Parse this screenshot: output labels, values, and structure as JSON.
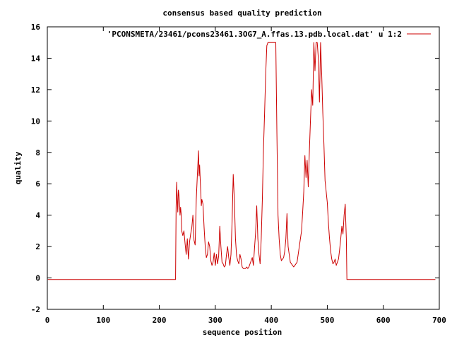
{
  "chart_data": {
    "type": "line",
    "title": "consensus based quality prediction",
    "xlabel": "sequence position",
    "ylabel": "quality",
    "xlim": [
      0,
      700
    ],
    "ylim": [
      -2,
      16
    ],
    "xticks": [
      0,
      100,
      200,
      300,
      400,
      500,
      600,
      700
    ],
    "yticks": [
      -2,
      0,
      2,
      4,
      6,
      8,
      10,
      12,
      14,
      16
    ],
    "grid": false,
    "legend_position": "top-right",
    "series": [
      {
        "name": "'PCONSMETA/23461/pcons23461.3OG7_A.ffas.13.pdb.local.dat' u 1:2",
        "color": "#cc0000",
        "x": [
          1,
          229,
          230,
          231,
          232,
          233,
          234,
          235,
          236,
          237,
          238,
          239,
          240,
          242,
          244,
          246,
          248,
          250,
          252,
          254,
          256,
          258,
          260,
          262,
          264,
          266,
          268,
          270,
          271,
          272,
          273,
          274,
          275,
          276,
          278,
          280,
          282,
          284,
          286,
          288,
          290,
          292,
          294,
          296,
          298,
          300,
          302,
          304,
          306,
          308,
          310,
          312,
          314,
          316,
          318,
          320,
          322,
          324,
          326,
          328,
          330,
          332,
          334,
          336,
          338,
          340,
          342,
          344,
          346,
          348,
          350,
          352,
          354,
          356,
          358,
          360,
          362,
          364,
          366,
          368,
          370,
          372,
          374,
          376,
          378,
          380,
          382,
          384,
          386,
          388,
          390,
          392,
          394,
          396,
          398,
          400,
          402,
          404,
          406,
          408,
          410,
          412,
          414,
          416,
          418,
          420,
          422,
          424,
          426,
          428,
          430,
          432,
          434,
          436,
          438,
          440,
          442,
          444,
          446,
          448,
          450,
          452,
          454,
          456,
          458,
          460,
          462,
          464,
          466,
          468,
          470,
          472,
          474,
          476,
          478,
          480,
          482,
          484,
          486,
          488,
          490,
          492,
          494,
          496,
          498,
          500,
          502,
          504,
          506,
          508,
          510,
          512,
          514,
          516,
          518,
          520,
          522,
          524,
          526,
          528,
          530,
          532,
          534,
          535,
          536,
          600,
          693
        ],
        "y": [
          -0.1,
          -0.1,
          4.5,
          6.1,
          5.0,
          4.2,
          5.6,
          5.3,
          4.8,
          4.0,
          4.5,
          4.1,
          3.0,
          2.7,
          3.0,
          2.2,
          1.5,
          2.5,
          1.2,
          2.3,
          2.8,
          3.2,
          4.0,
          2.4,
          2.1,
          5.0,
          6.6,
          8.1,
          6.5,
          7.2,
          6.3,
          5.5,
          4.6,
          5.0,
          4.7,
          3.2,
          2.0,
          1.3,
          1.5,
          2.3,
          2.0,
          1.1,
          0.8,
          1.0,
          1.6,
          0.8,
          1.5,
          0.9,
          1.4,
          3.3,
          2.0,
          1.0,
          0.9,
          0.7,
          0.8,
          1.5,
          2.0,
          1.3,
          0.8,
          1.5,
          3.6,
          6.6,
          5.0,
          2.5,
          1.4,
          1.1,
          0.9,
          1.5,
          1.2,
          0.7,
          0.6,
          0.6,
          0.6,
          0.7,
          0.6,
          0.7,
          0.9,
          1.1,
          1.3,
          0.8,
          1.9,
          2.9,
          4.6,
          2.5,
          1.5,
          0.9,
          2.5,
          5.0,
          8.2,
          10.5,
          13.0,
          14.8,
          15.0,
          15.0,
          15.0,
          15.0,
          15.0,
          15.0,
          15.0,
          15.0,
          9.2,
          4.0,
          2.5,
          1.5,
          1.1,
          1.2,
          1.3,
          1.7,
          2.5,
          4.1,
          2.0,
          1.5,
          1.0,
          0.9,
          0.8,
          0.7,
          0.8,
          0.9,
          1.0,
          1.5,
          2.0,
          2.5,
          3.0,
          4.2,
          5.5,
          7.8,
          6.4,
          7.5,
          5.8,
          8.1,
          10.1,
          12.0,
          11.0,
          15.0,
          13.2,
          15.0,
          15.0,
          14.0,
          11.2,
          15.0,
          13.0,
          10.5,
          8.5,
          6.2,
          5.5,
          4.8,
          3.5,
          2.5,
          1.7,
          1.2,
          0.9,
          1.0,
          1.2,
          0.8,
          1.0,
          1.2,
          1.8,
          2.5,
          3.3,
          2.8,
          4.0,
          4.7,
          2.5,
          -0.1,
          -0.1,
          -0.1,
          -0.1
        ]
      }
    ]
  }
}
